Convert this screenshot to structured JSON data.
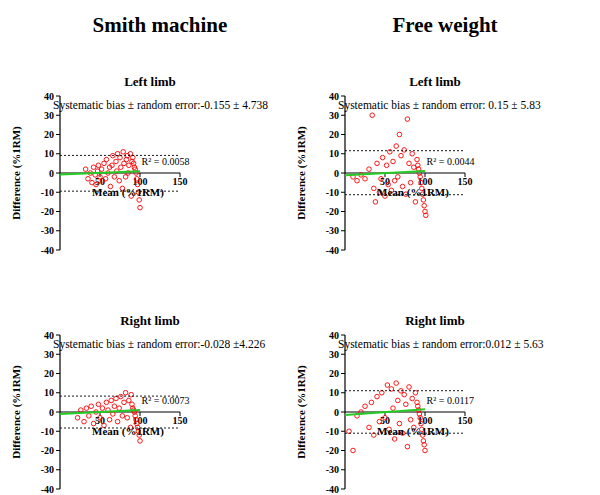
{
  "column_titles": [
    "Smith machine",
    "Free weight"
  ],
  "chart_data": [
    {
      "type": "scatter",
      "title": "Left limb",
      "x_label": "Mean (%1RM)",
      "y_label": "Difference (%1RM)",
      "annotations": [
        "Systematic bias ± random error:-0.155 ± 4.738",
        "R² = 0.0058"
      ],
      "xlim": [
        0,
        150
      ],
      "ylim": [
        -40,
        40
      ],
      "xticks": [
        50,
        100,
        150
      ],
      "yticks": [
        -40,
        -30,
        -20,
        -10,
        0,
        10,
        20,
        30,
        40
      ],
      "grid": false,
      "series": [
        {
          "type": "scatter",
          "color": "#ff0000",
          "marker": "open-circle",
          "x": [
            32,
            35,
            38,
            40,
            42,
            44,
            45,
            47,
            48,
            50,
            52,
            53,
            55,
            57,
            58,
            60,
            62,
            63,
            65,
            66,
            68,
            70,
            71,
            72,
            74,
            75,
            76,
            78,
            79,
            80,
            82,
            83,
            84,
            85,
            86,
            88,
            89,
            90,
            91,
            92,
            93,
            94,
            95,
            96,
            97,
            98,
            99,
            100
          ],
          "values": [
            2,
            -3,
            0,
            -5,
            3,
            -1,
            -6,
            1,
            4,
            -2,
            2,
            -4,
            5,
            -3,
            7,
            0,
            3,
            -7,
            4,
            9,
            -2,
            6,
            1,
            10,
            -4,
            8,
            3,
            -8,
            11,
            5,
            -2,
            7,
            9,
            0,
            4,
            10,
            -12,
            6,
            8,
            5,
            3,
            2,
            0,
            -3,
            -6,
            -10,
            -14,
            -18
          ]
        },
        {
          "type": "line",
          "color": "#22cc22",
          "line_style": "solid",
          "x": [
            0,
            100
          ],
          "values": [
            -0.8,
            0.9
          ]
        },
        {
          "type": "line",
          "color": "#000000",
          "line_style": "dashed",
          "x": [
            0,
            150
          ],
          "values": [
            9.13,
            9.13
          ]
        },
        {
          "type": "line",
          "color": "#000000",
          "line_style": "dashed",
          "x": [
            0,
            150
          ],
          "values": [
            -9.44,
            -9.44
          ]
        }
      ]
    },
    {
      "type": "scatter",
      "title": "Left limb",
      "x_label": "Mean (%1RM)",
      "y_label": "Difference (%1RM)",
      "annotations": [
        "Systematic bias ± random error: 0.15 ± 5.83",
        "R² = 0.0044"
      ],
      "xlim": [
        0,
        150
      ],
      "ylim": [
        -40,
        40
      ],
      "xticks": [
        50,
        100,
        150
      ],
      "yticks": [
        -40,
        -30,
        -20,
        -10,
        0,
        10,
        20,
        30,
        40
      ],
      "grid": false,
      "series": [
        {
          "type": "scatter",
          "color": "#ff0000",
          "marker": "open-circle",
          "x": [
            10,
            15,
            20,
            25,
            30,
            34,
            36,
            38,
            40,
            43,
            45,
            47,
            50,
            52,
            54,
            56,
            58,
            60,
            62,
            64,
            66,
            68,
            70,
            72,
            74,
            76,
            78,
            80,
            82,
            84,
            86,
            88,
            90,
            91,
            92,
            93,
            94,
            95,
            96,
            97,
            98,
            99,
            100,
            101
          ],
          "values": [
            -2,
            -4,
            -1,
            -3,
            2,
            30,
            -8,
            -15,
            5,
            -10,
            -3,
            8,
            -12,
            4,
            -6,
            11,
            -9,
            6,
            -4,
            14,
            -2,
            20,
            9,
            -7,
            12,
            -11,
            28,
            5,
            -5,
            10,
            3,
            -15,
            7,
            4,
            2,
            0,
            -2,
            -5,
            -8,
            -11,
            -14,
            -17,
            -20,
            -22
          ]
        },
        {
          "type": "line",
          "color": "#22cc22",
          "line_style": "solid",
          "x": [
            0,
            100
          ],
          "values": [
            -1.2,
            1.0
          ]
        },
        {
          "type": "line",
          "color": "#000000",
          "line_style": "dashed",
          "x": [
            0,
            150
          ],
          "values": [
            11.58,
            11.58
          ]
        },
        {
          "type": "line",
          "color": "#000000",
          "line_style": "dashed",
          "x": [
            0,
            150
          ],
          "values": [
            -11.28,
            -11.28
          ]
        }
      ]
    },
    {
      "type": "scatter",
      "title": "Right limb",
      "x_label": "Mean (%1RM)",
      "y_label": "Difference (%1RM)",
      "annotations": [
        "Systematic bias ± random error:-0.028 ±4.226",
        "R² = 0.0073"
      ],
      "xlim": [
        0,
        150
      ],
      "ylim": [
        -40,
        40
      ],
      "xticks": [
        50,
        100,
        150
      ],
      "yticks": [
        -40,
        -30,
        -20,
        -10,
        0,
        10,
        20,
        30,
        40
      ],
      "grid": false,
      "series": [
        {
          "type": "scatter",
          "color": "#ff0000",
          "marker": "open-circle",
          "x": [
            22,
            26,
            30,
            33,
            36,
            39,
            42,
            45,
            48,
            50,
            53,
            55,
            58,
            60,
            62,
            64,
            66,
            68,
            70,
            72,
            74,
            76,
            78,
            80,
            82,
            84,
            86,
            88,
            89,
            90,
            91,
            92,
            93,
            94,
            95,
            96,
            97,
            98,
            99,
            100
          ],
          "values": [
            -3,
            1,
            -5,
            2,
            -2,
            3,
            -6,
            0,
            4,
            -3,
            2,
            -7,
            5,
            1,
            -4,
            6,
            -1,
            3,
            7,
            -5,
            2,
            8,
            -2,
            5,
            10,
            -3,
            6,
            -8,
            9,
            4,
            2,
            1,
            0,
            -2,
            -4,
            -6,
            -8,
            -10,
            -12,
            -15
          ]
        },
        {
          "type": "line",
          "color": "#22cc22",
          "line_style": "solid",
          "x": [
            0,
            100
          ],
          "values": [
            -1.0,
            1.1
          ]
        },
        {
          "type": "line",
          "color": "#000000",
          "line_style": "dashed",
          "x": [
            0,
            150
          ],
          "values": [
            8.26,
            8.26
          ]
        },
        {
          "type": "line",
          "color": "#000000",
          "line_style": "dashed",
          "x": [
            0,
            150
          ],
          "values": [
            -8.31,
            -8.31
          ]
        }
      ]
    },
    {
      "type": "scatter",
      "title": "Right limb",
      "x_label": "Mean (%1RM)",
      "y_label": "Difference (%1RM)",
      "annotations": [
        "Systematic bias ± random error:0.012 ± 5.63",
        "R² = 0.0117"
      ],
      "xlim": [
        0,
        150
      ],
      "ylim": [
        -40,
        40
      ],
      "xticks": [
        50,
        100,
        150
      ],
      "yticks": [
        -40,
        -30,
        -20,
        -10,
        0,
        10,
        20,
        30,
        40
      ],
      "grid": false,
      "series": [
        {
          "type": "scatter",
          "color": "#ff0000",
          "marker": "open-circle",
          "x": [
            5,
            10,
            15,
            20,
            25,
            30,
            33,
            36,
            40,
            43,
            46,
            50,
            53,
            55,
            58,
            60,
            62,
            64,
            66,
            68,
            70,
            72,
            74,
            76,
            78,
            80,
            82,
            84,
            86,
            88,
            90,
            91,
            92,
            93,
            94,
            95,
            96,
            97,
            98,
            99,
            100
          ],
          "values": [
            -10,
            -20,
            -2,
            0,
            3,
            -8,
            5,
            -12,
            8,
            -5,
            10,
            -3,
            14,
            -9,
            12,
            2,
            -14,
            15,
            6,
            -6,
            11,
            -11,
            9,
            4,
            -18,
            13,
            -4,
            7,
            -8,
            10,
            5,
            3,
            1,
            -1,
            -3,
            -6,
            -9,
            -12,
            -15,
            -17,
            -20
          ]
        },
        {
          "type": "line",
          "color": "#22cc22",
          "line_style": "solid",
          "x": [
            0,
            100
          ],
          "values": [
            -1.6,
            1.4
          ]
        },
        {
          "type": "line",
          "color": "#000000",
          "line_style": "dashed",
          "x": [
            0,
            150
          ],
          "values": [
            11.05,
            11.05
          ]
        },
        {
          "type": "line",
          "color": "#000000",
          "line_style": "dashed",
          "x": [
            0,
            150
          ],
          "values": [
            -11.02,
            -11.02
          ]
        }
      ]
    }
  ]
}
